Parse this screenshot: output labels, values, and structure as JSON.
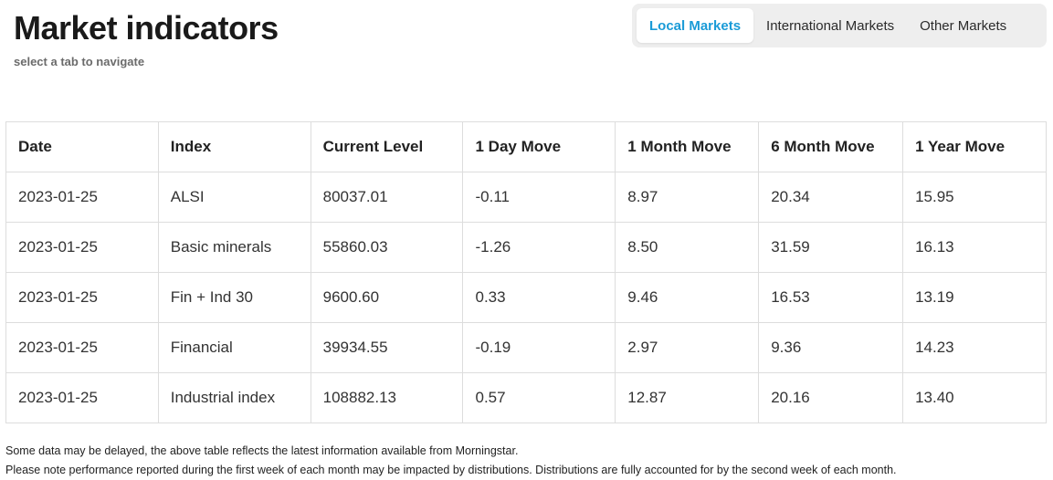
{
  "header": {
    "title": "Market indicators",
    "subtitle": "select a tab to navigate"
  },
  "tabs": [
    {
      "label": "Local Markets",
      "active": true
    },
    {
      "label": "International Markets",
      "active": false
    },
    {
      "label": "Other Markets",
      "active": false
    }
  ],
  "table": {
    "columns": [
      "Date",
      "Index",
      "Current Level",
      "1 Day Move",
      "1 Month Move",
      "6 Month Move",
      "1 Year Move"
    ],
    "rows": [
      [
        "2023-01-25",
        "ALSI",
        "80037.01",
        "-0.11",
        "8.97",
        "20.34",
        "15.95"
      ],
      [
        "2023-01-25",
        "Basic minerals",
        "55860.03",
        "-1.26",
        "8.50",
        "31.59",
        "16.13"
      ],
      [
        "2023-01-25",
        "Fin + Ind 30",
        "9600.60",
        "0.33",
        "9.46",
        "16.53",
        "13.19"
      ],
      [
        "2023-01-25",
        "Financial",
        "39934.55",
        "-0.19",
        "2.97",
        "9.36",
        "14.23"
      ],
      [
        "2023-01-25",
        "Industrial index",
        "108882.13",
        "0.57",
        "12.87",
        "20.16",
        "13.40"
      ]
    ]
  },
  "footnotes": [
    "Some data may be delayed, the above table reflects the latest information available from Morningstar.",
    "Please note performance reported during the first week of each month may be impacted by distributions. Distributions are fully accounted for by the second week of each month."
  ],
  "colors": {
    "accent": "#1a9bd7",
    "tab_bar_bg": "#eeeeee",
    "border": "#dddddd"
  }
}
